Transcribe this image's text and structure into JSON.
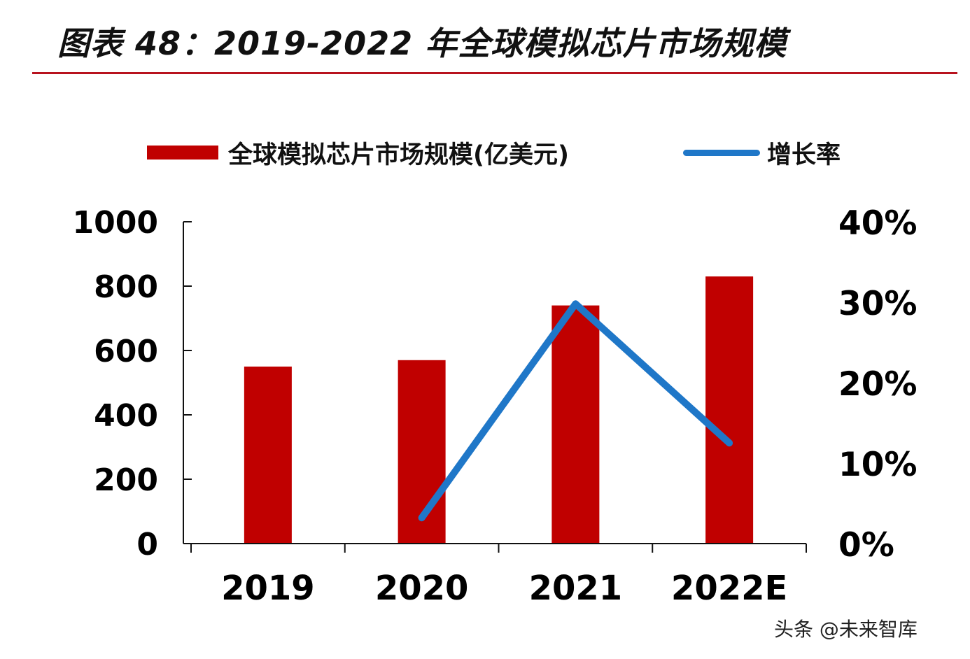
{
  "title": "图表 48：2019-2022 年全球模拟芯片市场规模",
  "watermark": "头条 @未来智库",
  "chart_data": {
    "type": "bar",
    "categories": [
      "2019",
      "2020",
      "2021",
      "2022E"
    ],
    "series": [
      {
        "name": "全球模拟芯片市场规模(亿美元)",
        "type": "bar",
        "axis": "left",
        "color": "#c00000",
        "values": [
          550,
          570,
          740,
          830
        ]
      },
      {
        "name": "增长率",
        "type": "line",
        "axis": "right",
        "color": "#1f77c8",
        "values": [
          null,
          3.2,
          29.8,
          12.5
        ]
      }
    ],
    "y_left": {
      "ylim": [
        0,
        1000
      ],
      "ticks": [
        "0",
        "200",
        "400",
        "600",
        "800",
        "1000"
      ]
    },
    "y_right": {
      "ylim": [
        0,
        40
      ],
      "ticks": [
        "0%",
        "10%",
        "20%",
        "30%",
        "40%"
      ]
    },
    "legend_position": "top",
    "grid": false
  }
}
